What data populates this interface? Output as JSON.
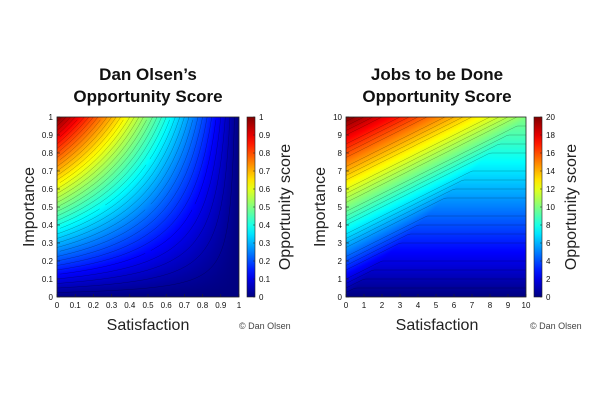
{
  "chart_data": [
    {
      "type": "heatmap",
      "model": "olsen",
      "title_lines": [
        "Dan Olsen’s",
        "Opportunity Score"
      ],
      "xlabel": "Satisfaction",
      "ylabel": "Importance",
      "colorbar_label": "Opportunity score",
      "xlim": [
        0,
        1
      ],
      "ylim": [
        0,
        1
      ],
      "zlim": [
        0,
        1
      ],
      "x_ticks": [
        "0",
        "0.1",
        "0.2",
        "0.3",
        "0.4",
        "0.5",
        "0.6",
        "0.7",
        "0.8",
        "0.9",
        "1"
      ],
      "y_ticks": [
        "0",
        "0.1",
        "0.2",
        "0.3",
        "0.4",
        "0.5",
        "0.6",
        "0.7",
        "0.8",
        "0.9",
        "1"
      ],
      "colorbar_ticks": [
        "0",
        "0.1",
        "0.2",
        "0.3",
        "0.4",
        "0.5",
        "0.6",
        "0.7",
        "0.8",
        "0.9",
        "1"
      ],
      "colormap": "jet",
      "contour_lines": true,
      "credit": "© Dan Olsen"
    },
    {
      "type": "heatmap",
      "model": "jtbd",
      "title_lines": [
        "Jobs to be Done",
        "Opportunity Score"
      ],
      "xlabel": "Satisfaction",
      "ylabel": "Importance",
      "colorbar_label": "Opportunity score",
      "xlim": [
        0,
        10
      ],
      "ylim": [
        0,
        10
      ],
      "zlim": [
        0,
        20
      ],
      "x_ticks": [
        "0",
        "1",
        "2",
        "3",
        "4",
        "5",
        "6",
        "7",
        "8",
        "9",
        "10"
      ],
      "y_ticks": [
        "0",
        "1",
        "2",
        "3",
        "4",
        "5",
        "6",
        "7",
        "8",
        "9",
        "10"
      ],
      "colorbar_ticks": [
        "0",
        "2",
        "4",
        "6",
        "8",
        "10",
        "12",
        "14",
        "16",
        "18",
        "20"
      ],
      "colormap": "jet",
      "contour_lines": true,
      "credit": "© Dan Olsen"
    }
  ]
}
